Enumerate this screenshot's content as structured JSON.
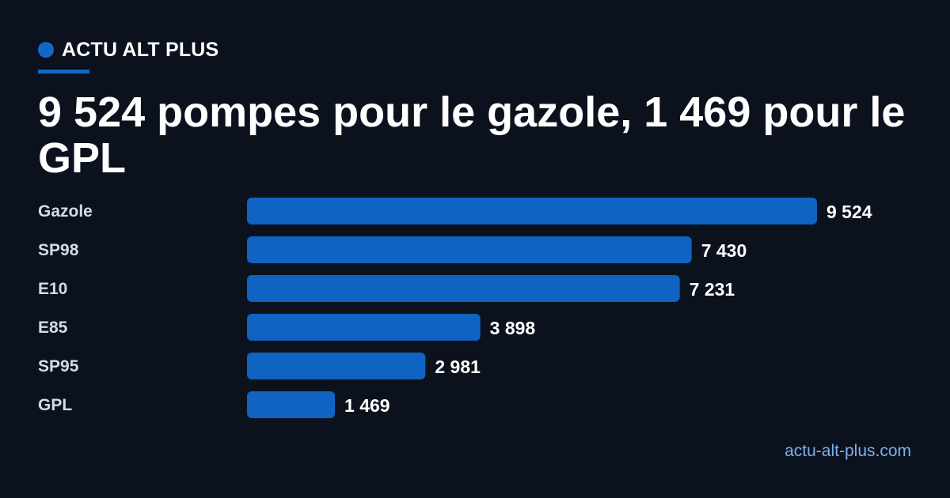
{
  "brand": {
    "name": "ACTU ALT PLUS"
  },
  "headline": "9 524 pompes pour le gazole, 1 469 pour le GPL",
  "footer": {
    "site": "actu-alt-plus.com"
  },
  "colors": {
    "background": "#0b121d",
    "accent": "#1467c7",
    "bar": "#0f63c2",
    "category_label": "#d5dbe4",
    "value_label": "#ffffff",
    "footer_link": "#7eb0ea"
  },
  "chart_data": {
    "type": "bar",
    "orientation": "horizontal",
    "title": "9 524 pompes pour le gazole, 1 469 pour le GPL",
    "categories": [
      "Gazole",
      "SP98",
      "E10",
      "E85",
      "SP95",
      "GPL"
    ],
    "values": [
      9524,
      7430,
      7231,
      3898,
      2981,
      1469
    ],
    "value_labels": [
      "9 524",
      "7 430",
      "7 231",
      "3 898",
      "2 981",
      "1 469"
    ],
    "xlim": [
      0,
      9524
    ],
    "grid": false,
    "legend": "none"
  }
}
